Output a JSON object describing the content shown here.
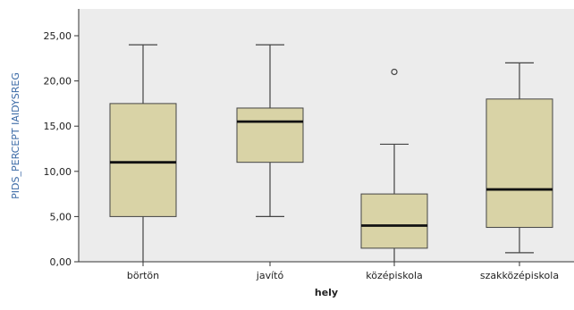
{
  "chart_data": {
    "type": "boxplot",
    "title": "",
    "xlabel": "hely",
    "ylabel": "PIDS_PERCEPT IAIDYSREG",
    "ylim": [
      0,
      26
    ],
    "y_ticks": [
      "0,00",
      "5,00",
      "10,00",
      "15,00",
      "20,00",
      "25,00"
    ],
    "y_tick_values": [
      0,
      5,
      10,
      15,
      20,
      25
    ],
    "categories": [
      "börtön",
      "javító",
      "középiskola",
      "szakközépiskola"
    ],
    "boxes": [
      {
        "category": "börtön",
        "min": 0,
        "q1": 5,
        "median": 11,
        "q3": 17.5,
        "max": 24,
        "outliers": []
      },
      {
        "category": "javító",
        "min": 5,
        "q1": 11,
        "median": 15.5,
        "q3": 17,
        "max": 24,
        "outliers": []
      },
      {
        "category": "középiskola",
        "min": 0,
        "q1": 1.5,
        "median": 4,
        "q3": 7.5,
        "max": 13,
        "outliers": [
          21
        ]
      },
      {
        "category": "szakközépiskola",
        "min": 1,
        "q1": 3.8,
        "median": 8,
        "q3": 18,
        "max": 22,
        "outliers": []
      }
    ],
    "grid": false,
    "colors": {
      "box_fill": "#d9d3a6",
      "box_stroke": "#444444",
      "plot_bg": "#ececec",
      "ylabel_color": "#3b6aa6",
      "axis_color": "#333333"
    }
  }
}
